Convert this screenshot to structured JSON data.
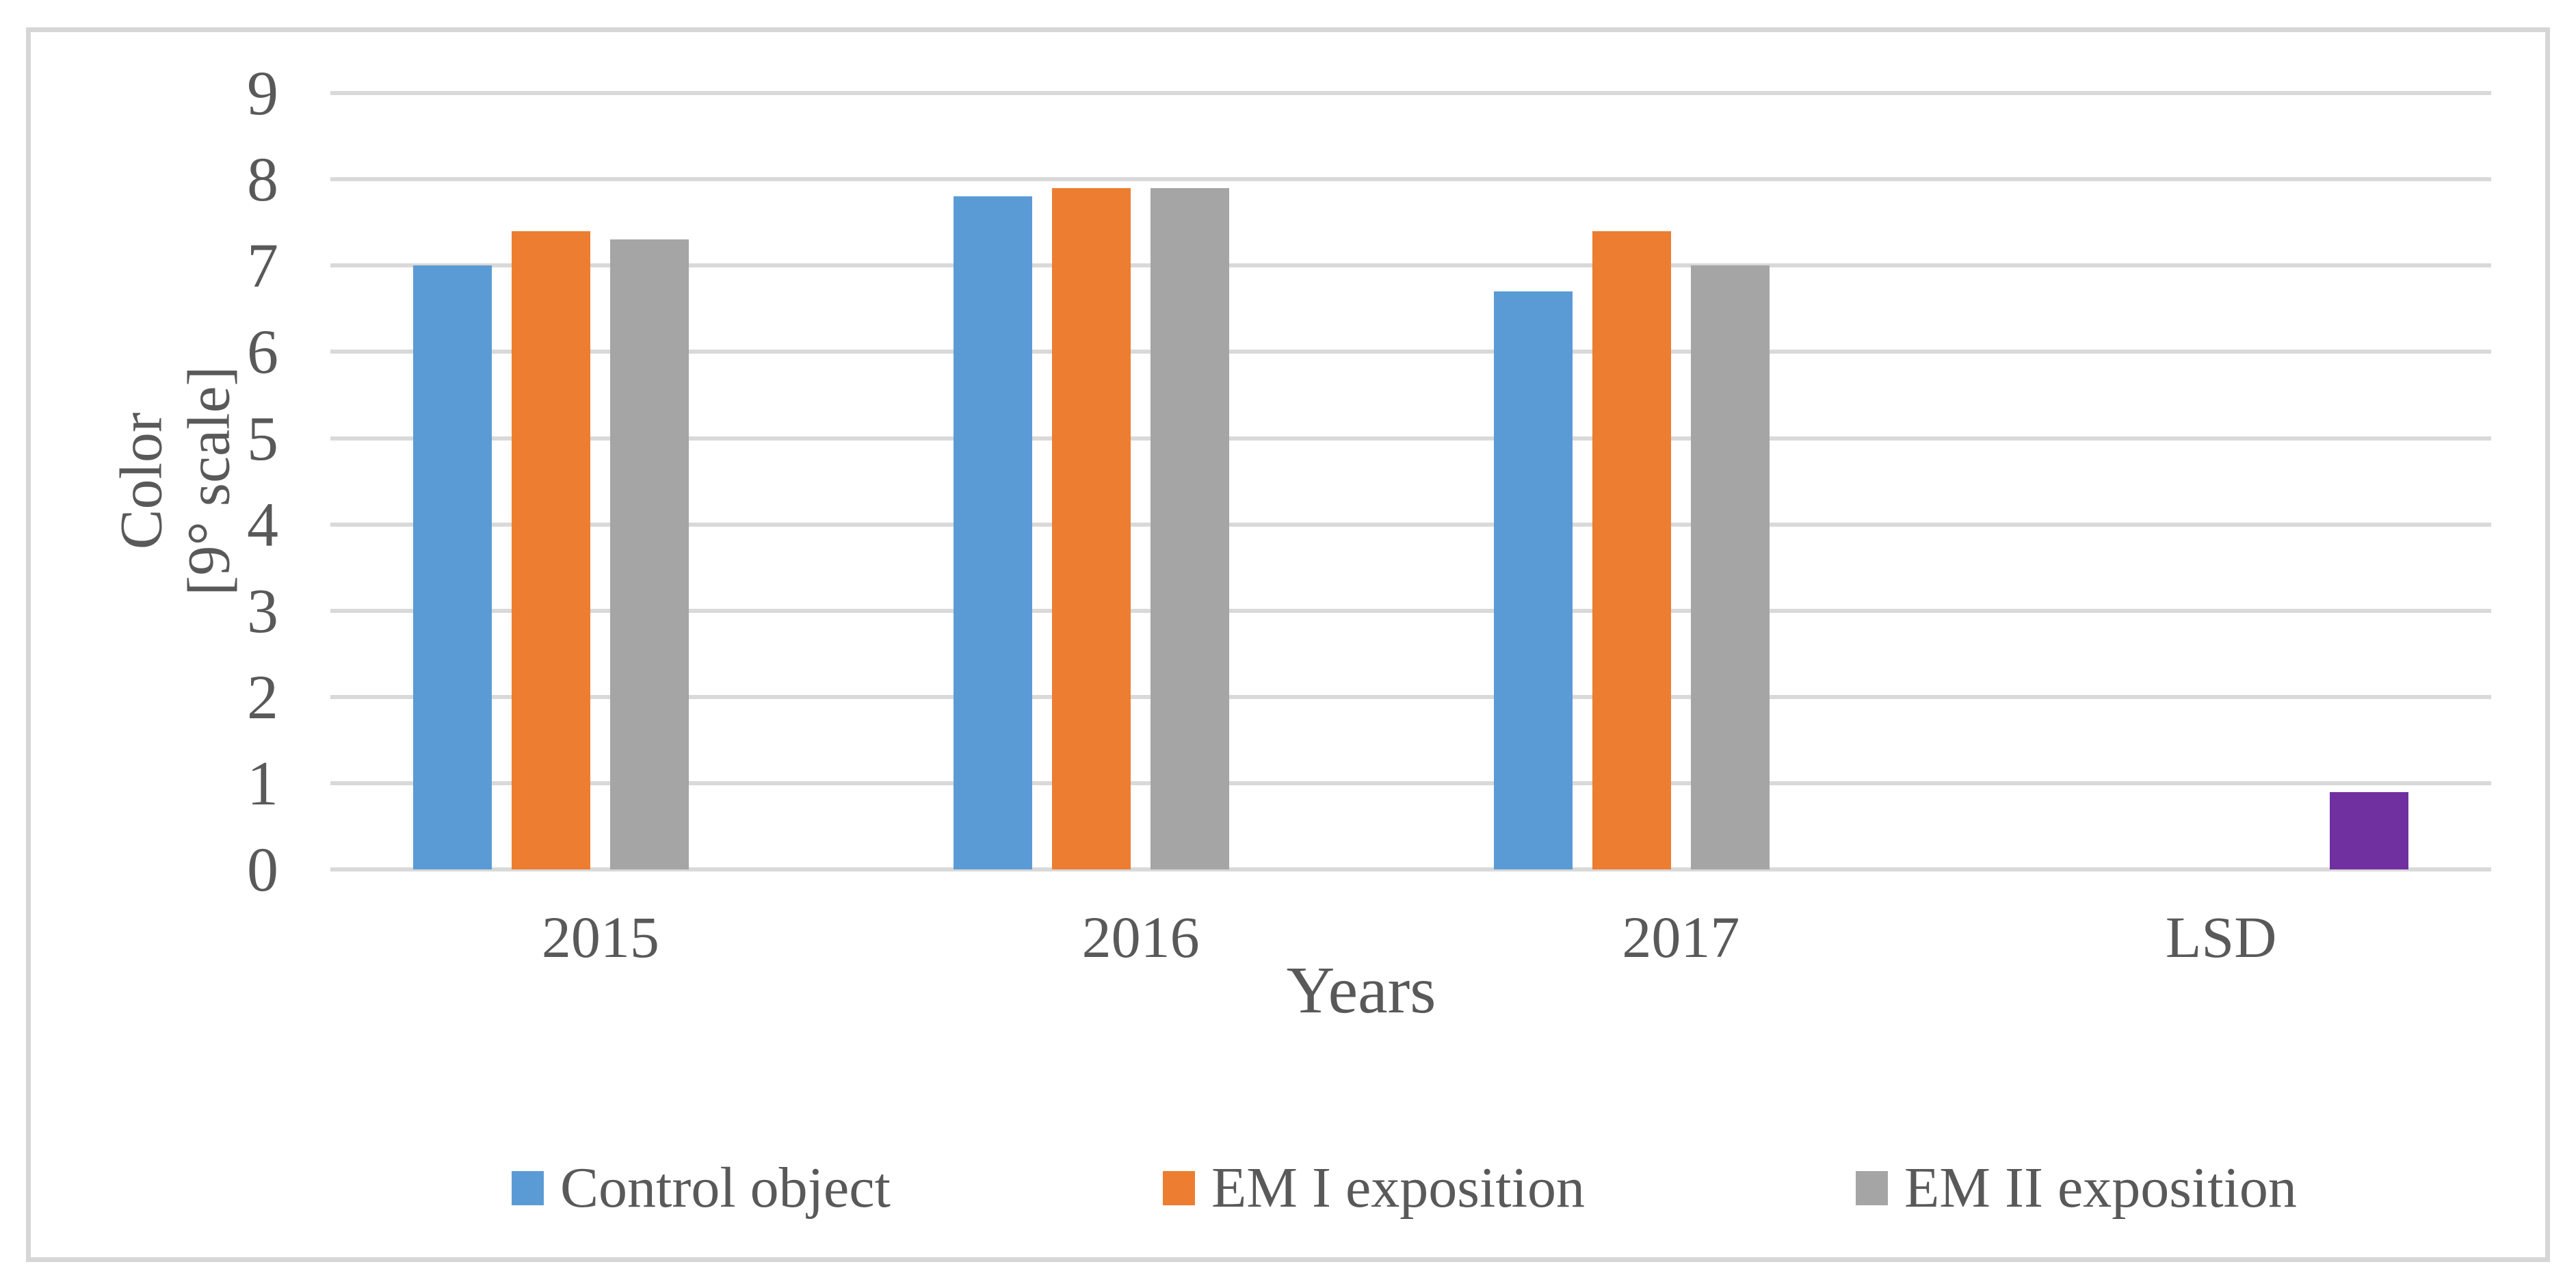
{
  "y_axis": {
    "title_lines": [
      "Color",
      "[9° scale]"
    ],
    "ticks": [
      0,
      1,
      2,
      3,
      4,
      5,
      6,
      7,
      8,
      9
    ]
  },
  "x_axis": {
    "title": "Years"
  },
  "chart_data": {
    "type": "bar",
    "categories": [
      "2015",
      "2016",
      "2017",
      "LSD"
    ],
    "series": [
      {
        "name": "Control object",
        "color": "#5B9BD5",
        "in_legend": true,
        "values": [
          7.0,
          7.8,
          6.7,
          null
        ]
      },
      {
        "name": "EM I exposition",
        "color": "#ED7D31",
        "in_legend": true,
        "values": [
          7.4,
          7.9,
          7.4,
          null
        ]
      },
      {
        "name": "EM II exposition",
        "color": "#A5A5A5",
        "in_legend": true,
        "values": [
          7.3,
          7.9,
          7.0,
          null
        ]
      },
      {
        "name": "LSD",
        "color": "#7030A0",
        "in_legend": false,
        "values": [
          null,
          null,
          null,
          0.9
        ]
      }
    ],
    "title": "",
    "xlabel": "Years",
    "ylabel": "Color [9° scale]",
    "ylim": [
      0,
      9
    ],
    "gridlines": "horizontal",
    "legend_position": "bottom"
  },
  "colors": {
    "gridline": "#D9D9D9",
    "frame_border": "#D6D6D6",
    "text": "#595959",
    "background": "#FFFFFF"
  }
}
